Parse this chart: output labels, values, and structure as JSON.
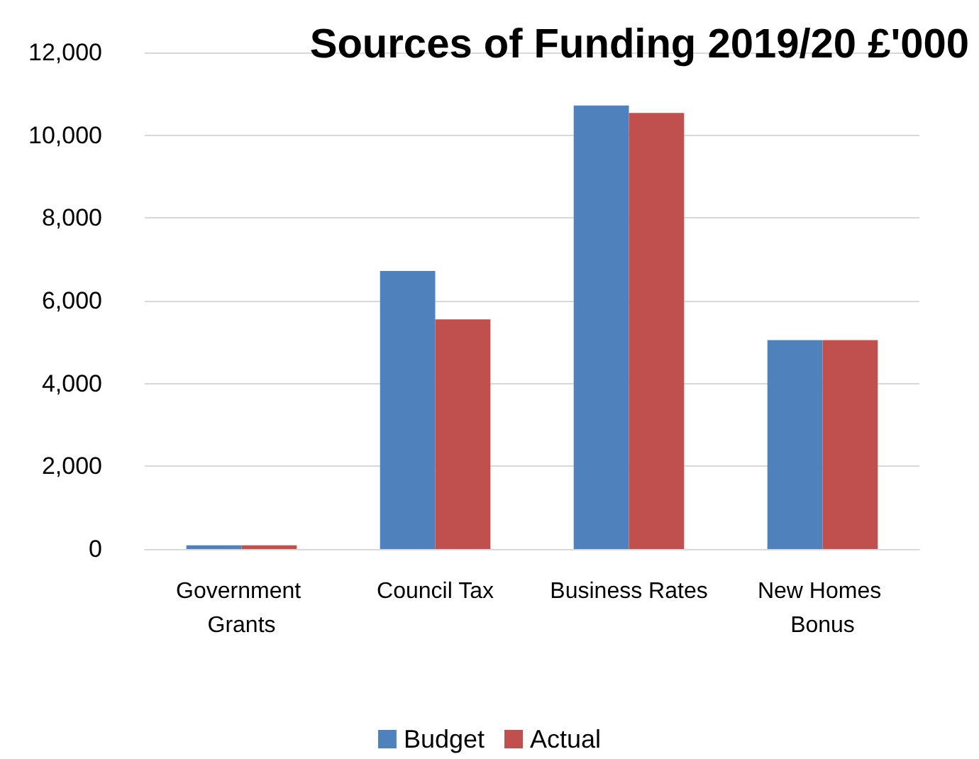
{
  "chart_data": {
    "type": "bar",
    "title": "Sources of Funding 2019/20 £'000",
    "categories": [
      "Government Grants",
      "Council Tax",
      "Business Rates",
      "New Homes Bonus"
    ],
    "series": [
      {
        "name": "Budget",
        "color": "#4f81bd",
        "values": [
          90,
          6720,
          10720,
          5050
        ]
      },
      {
        "name": "Actual",
        "color": "#c0504d",
        "values": [
          90,
          5550,
          10540,
          5050
        ]
      }
    ],
    "ylim": [
      0,
      12000
    ],
    "yticks": [
      0,
      {
        "value": 2000,
        "label": "2,000"
      },
      {
        "value": 4000,
        "label": "4,000"
      },
      {
        "value": 6000,
        "label": "6,000"
      },
      {
        "value": 8000,
        "label": "8,000"
      },
      {
        "value": 10000,
        "label": "10,000"
      },
      {
        "value": 12000,
        "label": "12,000"
      }
    ],
    "grid": "y",
    "legend": "bottom"
  }
}
